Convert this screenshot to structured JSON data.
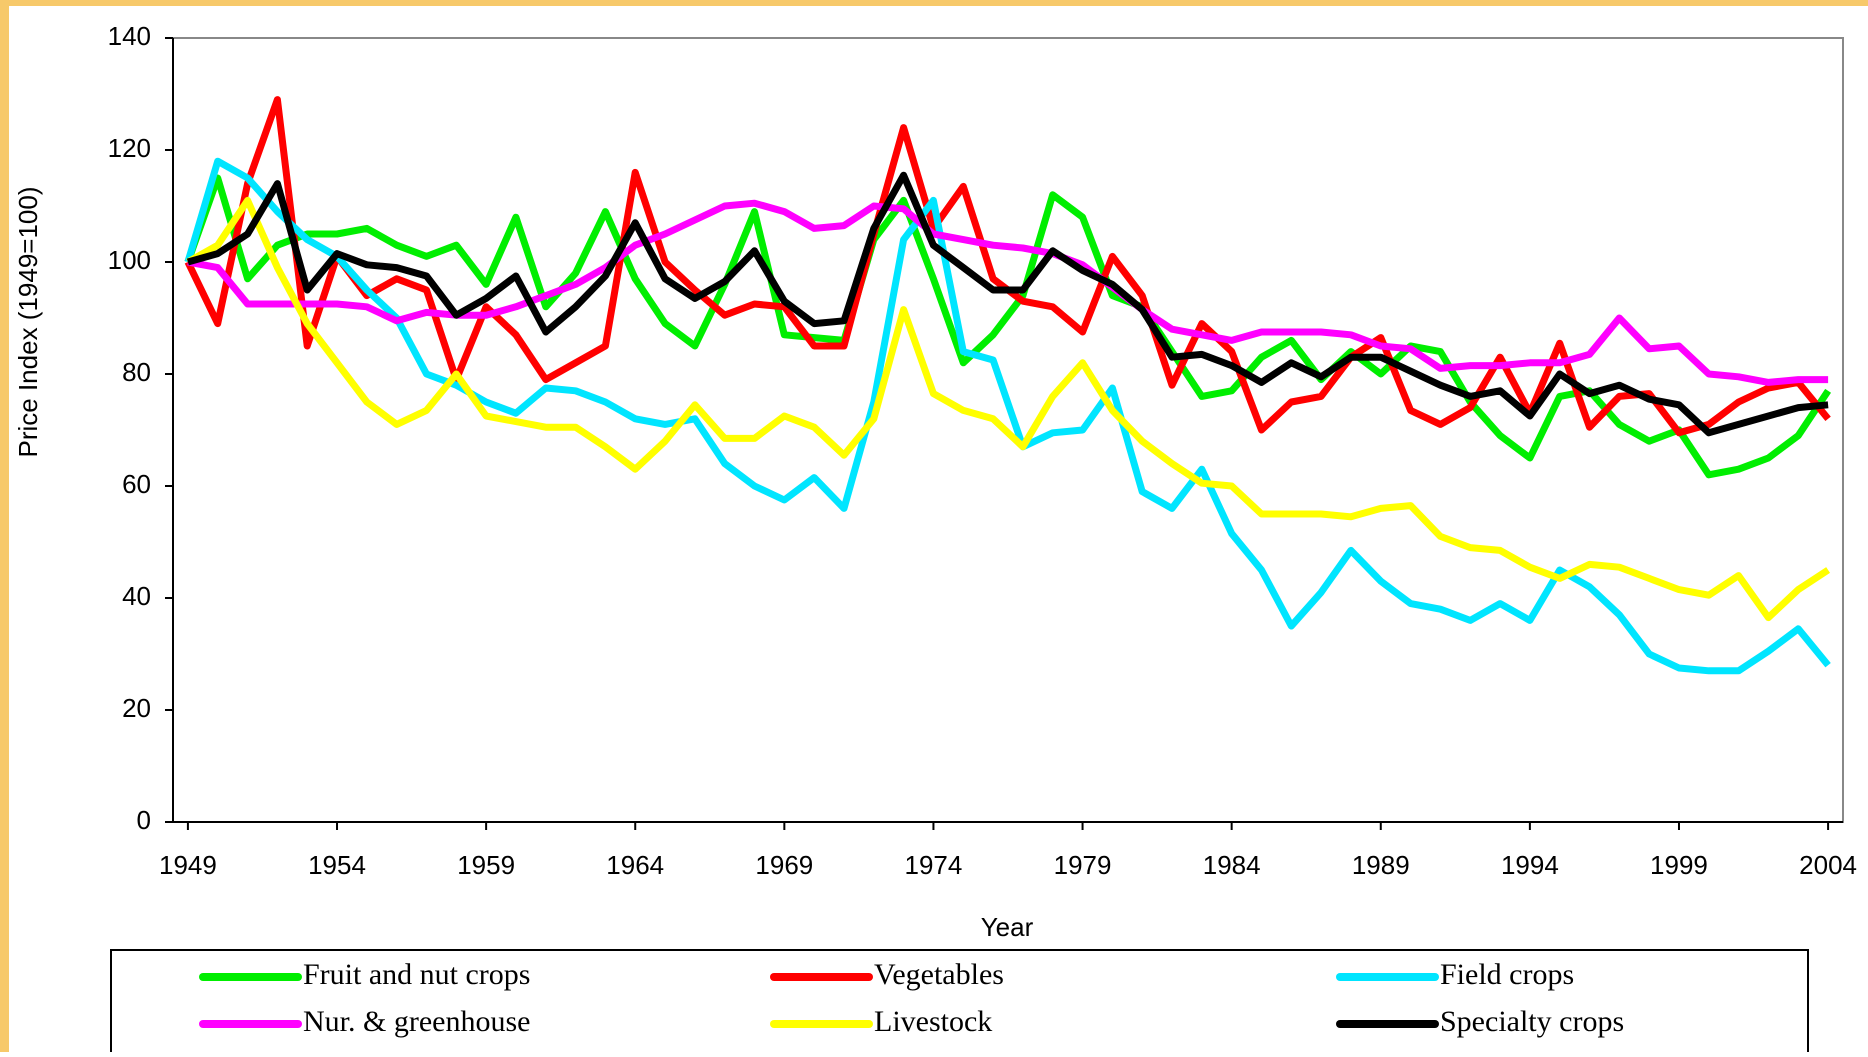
{
  "chart_data": {
    "type": "line",
    "x_label": "Year",
    "y_label": "Price Index (1949=100)",
    "x": [
      1949,
      1950,
      1951,
      1952,
      1953,
      1954,
      1955,
      1956,
      1957,
      1958,
      1959,
      1960,
      1961,
      1962,
      1963,
      1964,
      1965,
      1966,
      1967,
      1968,
      1969,
      1970,
      1971,
      1972,
      1973,
      1974,
      1975,
      1976,
      1977,
      1978,
      1979,
      1980,
      1981,
      1982,
      1983,
      1984,
      1985,
      1986,
      1987,
      1988,
      1989,
      1990,
      1991,
      1992,
      1993,
      1994,
      1995,
      1996,
      1997,
      1998,
      1999,
      2000,
      2001,
      2002,
      2003,
      2004
    ],
    "xlim": [
      1948.5,
      2004.5
    ],
    "xticks": [
      1949,
      1954,
      1959,
      1964,
      1969,
      1974,
      1979,
      1984,
      1989,
      1994,
      1999,
      2004
    ],
    "ylim": [
      0,
      140
    ],
    "yticks": [
      0,
      20,
      40,
      60,
      80,
      100,
      120,
      140
    ],
    "legend": "bottom",
    "series": [
      {
        "name": "Fruit and nut crops",
        "color": "#00ee00",
        "values": [
          100,
          115,
          97,
          103,
          105,
          105,
          106,
          103,
          101,
          103,
          96,
          108,
          92,
          98,
          109,
          97,
          89,
          85,
          96,
          109,
          87,
          86.5,
          86,
          104,
          111,
          97,
          82,
          87,
          94,
          112,
          108,
          94,
          92,
          84,
          76,
          77,
          83,
          86,
          79,
          84,
          80,
          85,
          84,
          75,
          69,
          65,
          76,
          77,
          71,
          68,
          70,
          62,
          63,
          65,
          69,
          77
        ]
      },
      {
        "name": "Vegetables",
        "color": "#ff0000",
        "values": [
          100,
          89,
          114,
          129,
          85,
          101,
          94,
          97,
          95,
          79,
          92,
          87,
          79,
          82,
          85,
          116,
          100,
          95,
          90.5,
          92.5,
          92,
          85,
          85,
          105,
          124,
          106,
          113.5,
          97,
          93,
          92,
          87.5,
          101,
          94,
          78,
          89,
          84,
          70,
          75,
          76,
          83,
          86.5,
          73.5,
          71,
          74,
          83,
          73,
          85.5,
          70.5,
          76,
          76.5,
          69.5,
          71,
          75,
          77.5,
          78.5,
          72
        ]
      },
      {
        "name": "Field crops",
        "color": "#00e5ff",
        "values": [
          100,
          118,
          115,
          109,
          104,
          101,
          95,
          90,
          80,
          78,
          75,
          73,
          77.5,
          77,
          75,
          72,
          71,
          72,
          64,
          60,
          57.5,
          61.5,
          56,
          75,
          104,
          111,
          84,
          82.5,
          67,
          69.5,
          70,
          77.5,
          59,
          56,
          63,
          51.5,
          45,
          35,
          41,
          48.5,
          43,
          39,
          38,
          36,
          39,
          36,
          45,
          42,
          37,
          30,
          27.5,
          27,
          27,
          30.5,
          34.5,
          28
        ]
      },
      {
        "name": "Nur. & greenhouse",
        "color": "#ff00ff",
        "values": [
          100,
          99,
          92.5,
          92.5,
          92.5,
          92.5,
          92,
          89.5,
          91,
          90.5,
          90.5,
          92,
          94,
          96,
          99,
          103,
          105,
          107.5,
          110,
          110.5,
          109,
          106,
          106.5,
          110,
          109.5,
          105,
          104,
          103,
          102.5,
          101.5,
          99.5,
          95.5,
          91.5,
          88,
          87,
          86,
          87.5,
          87.5,
          87.5,
          87,
          85,
          84.5,
          81,
          81.5,
          81.5,
          82,
          82,
          83.5,
          90,
          84.5,
          85,
          80,
          79.5,
          78.5,
          79,
          79
        ]
      },
      {
        "name": "Livestock",
        "color": "#ffff00",
        "values": [
          100,
          103,
          111,
          99,
          89,
          82,
          75,
          71,
          73.5,
          80,
          72.5,
          71.5,
          70.5,
          70.5,
          67,
          63,
          68,
          74.5,
          68.5,
          68.5,
          72.5,
          70.5,
          65.5,
          72,
          91.5,
          76.5,
          73.5,
          72,
          67,
          76,
          82,
          73.5,
          68,
          64,
          60.5,
          60,
          55,
          55,
          55,
          54.5,
          56,
          56.5,
          51,
          49,
          48.5,
          45.5,
          43.5,
          46,
          45.5,
          43.5,
          41.5,
          40.5,
          44,
          36.5,
          41.5,
          45
        ]
      },
      {
        "name": "Specialty crops",
        "color": "#000000",
        "values": [
          100,
          101.5,
          105,
          114,
          95,
          101.5,
          99.5,
          99,
          97.5,
          90.5,
          93.5,
          97.5,
          87.5,
          92,
          97.5,
          107,
          97,
          93.5,
          96.5,
          102,
          93,
          89,
          89.5,
          106,
          115.5,
          103,
          99,
          95,
          95,
          102,
          98.5,
          96,
          91.5,
          83,
          83.5,
          81.5,
          78.5,
          82,
          79.5,
          83,
          83,
          80.5,
          78,
          76,
          77,
          72.5,
          80,
          76.5,
          78,
          75.5,
          74.5,
          69.5,
          71,
          72.5,
          74,
          74.5
        ]
      }
    ]
  }
}
